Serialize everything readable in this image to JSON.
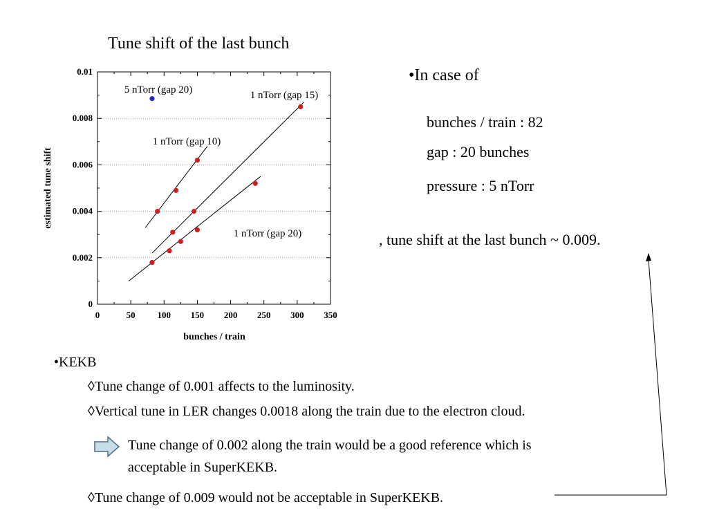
{
  "slide_title": "Tune shift of the last bunch",
  "chart_data": {
    "type": "scatter",
    "xlabel": "bunches / train",
    "ylabel": "estimated tune shift",
    "xlim": [
      0,
      350
    ],
    "ylim": [
      0,
      0.01
    ],
    "x_ticks": [
      "0",
      "50",
      "100",
      "150",
      "200",
      "250",
      "300",
      "350"
    ],
    "y_ticks": [
      "0",
      "0.002",
      "0.004",
      "0.006",
      "0.008",
      "0.01"
    ],
    "grid": "horizontal dotted",
    "series": [
      {
        "name": "1 nTorr (gap 10)",
        "color": "#cc1f1f",
        "points": [
          [
            90,
            0.004
          ],
          [
            118,
            0.0049
          ],
          [
            150,
            0.0062
          ]
        ],
        "fit_line": [
          [
            72,
            0.0033
          ],
          [
            165,
            0.0068
          ]
        ]
      },
      {
        "name": "1 nTorr (gap 15)",
        "color": "#cc1f1f",
        "points": [
          [
            113,
            0.0031
          ],
          [
            145,
            0.004
          ],
          [
            305,
            0.0085
          ]
        ],
        "fit_line": [
          [
            82,
            0.0022
          ],
          [
            310,
            0.0087
          ]
        ]
      },
      {
        "name": "1 nTorr (gap 20)",
        "color": "#cc1f1f",
        "points": [
          [
            82,
            0.0018
          ],
          [
            108,
            0.0023
          ],
          [
            125,
            0.0027
          ],
          [
            150,
            0.0032
          ],
          [
            237,
            0.0052
          ]
        ],
        "fit_line": [
          [
            47,
            0.001
          ],
          [
            245,
            0.0055
          ]
        ]
      },
      {
        "name": "5 nTorr (gap 20)",
        "color": "#2a2ad0",
        "points": [
          [
            82,
            0.00885
          ]
        ]
      }
    ]
  },
  "info": {
    "heading": "•In case of",
    "bunches": "bunches / train : 82",
    "gap": "gap : 20 bunches",
    "pressure": "pressure : 5 nTorr",
    "result": ", tune shift at the last bunch ~ 0.009."
  },
  "kekb": {
    "heading": "•KEKB",
    "item1": "◊Tune change of 0.001 affects to the luminosity.",
    "item2": "◊Vertical tune in LER changes 0.0018 along the train due to the electron cloud.",
    "conclusion_line1": "Tune change of 0.002 along the train would be a good reference which is",
    "conclusion_line2": "acceptable in SuperKEKB.",
    "item3": "◊Tune change of 0.009  would not be acceptable in SuperKEKB."
  },
  "colors": {
    "arrow_fill": "#c7dde8",
    "arrow_stroke": "#4a6f86",
    "point_red": "#cc1f1f",
    "point_blue": "#2a2ad0"
  }
}
